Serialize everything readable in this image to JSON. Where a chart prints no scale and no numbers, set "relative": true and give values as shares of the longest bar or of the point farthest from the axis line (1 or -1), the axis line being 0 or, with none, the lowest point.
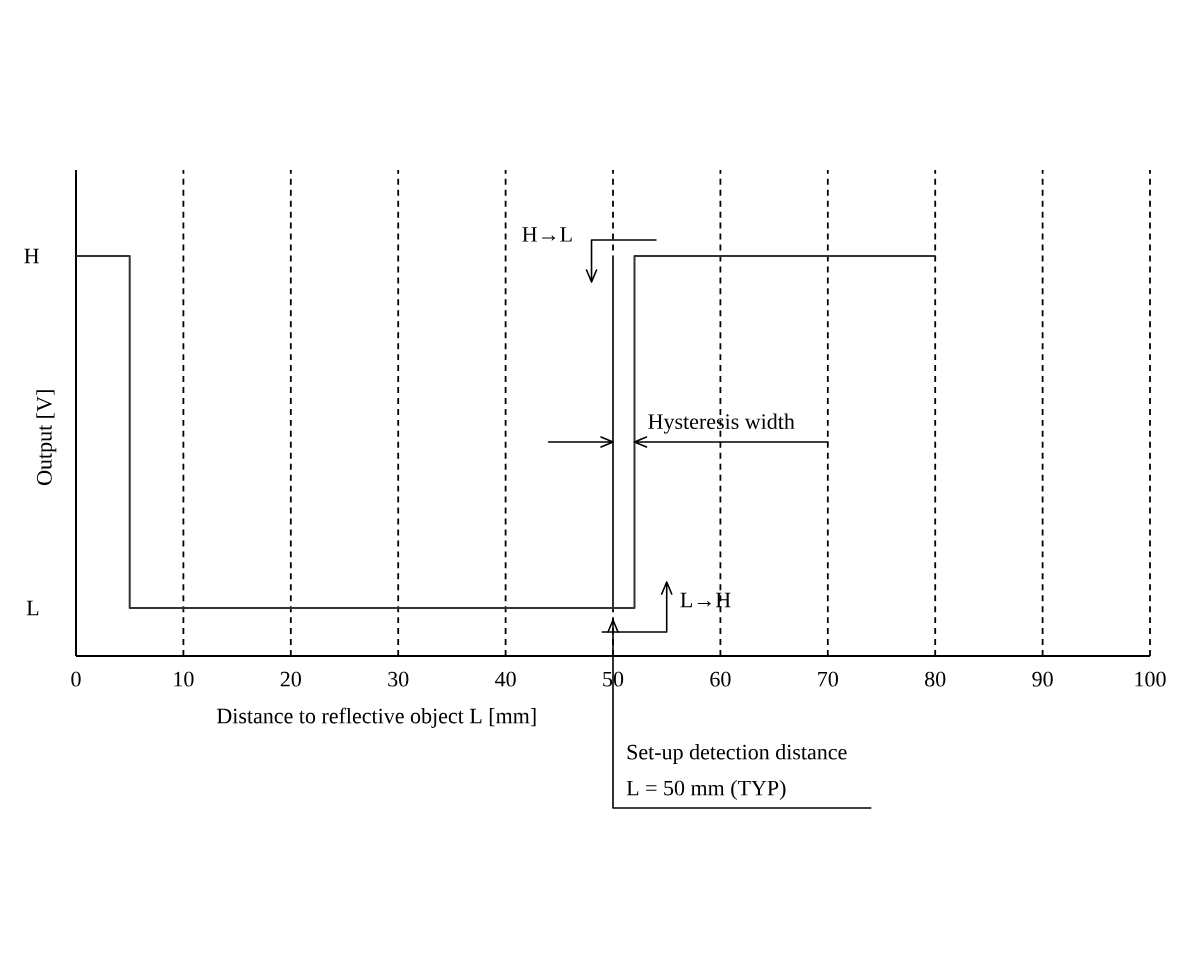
{
  "chart_data": {
    "type": "line",
    "xlabel": "Distance to reflective object  L [mm]",
    "ylabel": "Output  [V]",
    "xlim": [
      0,
      100
    ],
    "xticks": [
      0,
      10,
      20,
      30,
      40,
      50,
      60,
      70,
      80,
      90,
      100
    ],
    "relative": true,
    "grid": "x",
    "line_style": "solid",
    "marker": "none",
    "series": [
      {
        "color": "#333333",
        "x": [
          0,
          5,
          5,
          52,
          52,
          80
        ],
        "values": [
          1,
          1,
          0.12,
          0.12,
          1,
          1
        ]
      },
      {
        "color": "#333333",
        "x": [
          50,
          50
        ],
        "values": [
          0.12,
          1
        ]
      }
    ],
    "annotations": [
      "H",
      "L",
      "H→L",
      "L→H",
      "Hysteresis width",
      "Set-up detection distance",
      "L = 50 mm (TYP)"
    ]
  }
}
